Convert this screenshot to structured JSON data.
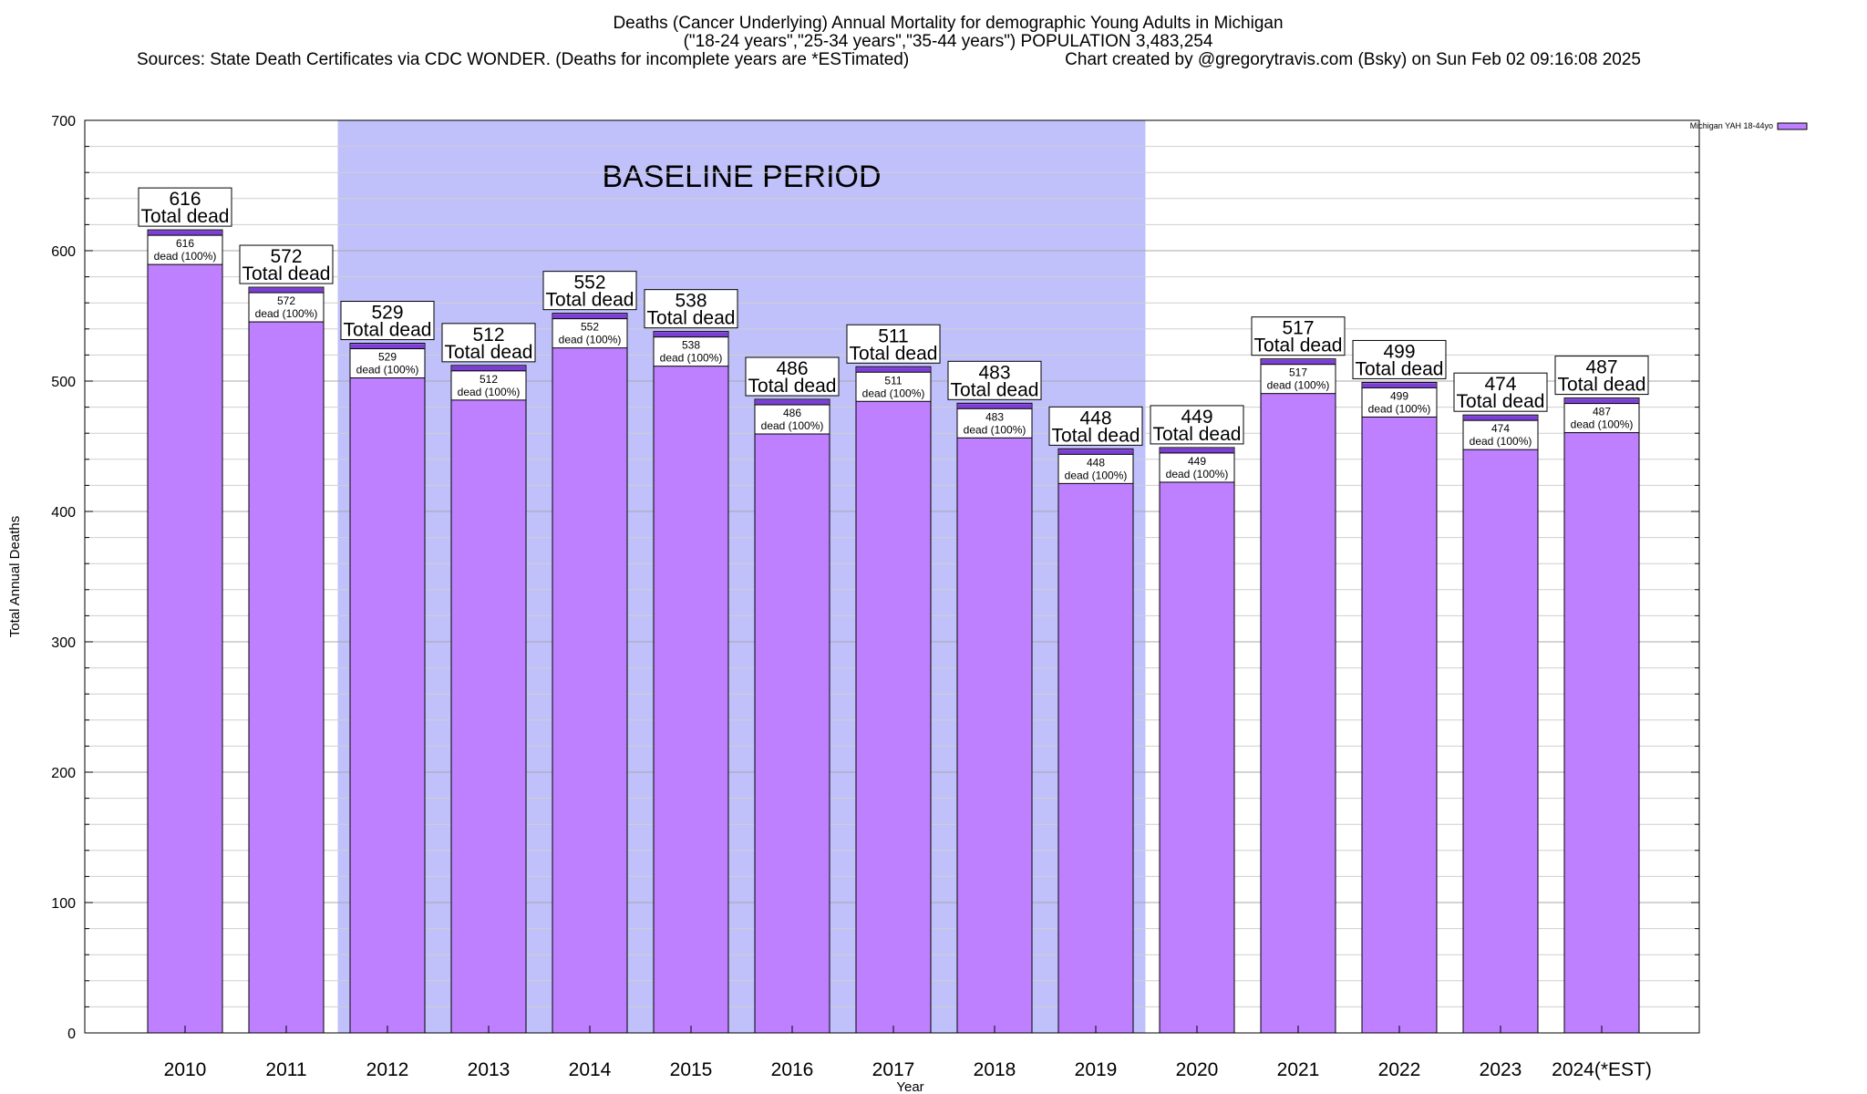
{
  "chart_data": {
    "type": "bar",
    "title": "Deaths (Cancer Underlying) Annual Mortality for demographic Young Adults in Michigan",
    "subtitle": "(\"18-24 years\",\"25-34 years\",\"35-44 years\") POPULATION 3,483,254",
    "sources": "Sources: State Death Certificates via CDC WONDER. (Deaths for incomplete years are *ESTimated)",
    "credit": "Chart created by @gregorytravis.com (Bsky) on Sun Feb 02 09:16:08 2025",
    "xlabel": "Year",
    "ylabel": "Total Annual Deaths",
    "ylim": [
      0,
      700
    ],
    "yticks": [
      0,
      100,
      200,
      300,
      400,
      500,
      600,
      700
    ],
    "categories": [
      "2010",
      "2011",
      "2012",
      "2013",
      "2014",
      "2015",
      "2016",
      "2017",
      "2018",
      "2019",
      "2020",
      "2021",
      "2022",
      "2023",
      "2024(*EST)"
    ],
    "values": [
      616,
      572,
      529,
      512,
      552,
      538,
      486,
      511,
      483,
      448,
      449,
      517,
      499,
      474,
      487
    ],
    "total_label": "Total dead",
    "dead_label": "dead (100%)",
    "baseline": {
      "label": "BASELINE PERIOD",
      "from": "2012",
      "to": "2019",
      "color": "#c0c0fb"
    },
    "legend": {
      "label": "Michigan YAH 18-44yo",
      "position": "top-right"
    },
    "colors": {
      "bar": "#bf80ff",
      "cap": "#7b3fd6",
      "baseline": "#c0c0fb"
    }
  }
}
